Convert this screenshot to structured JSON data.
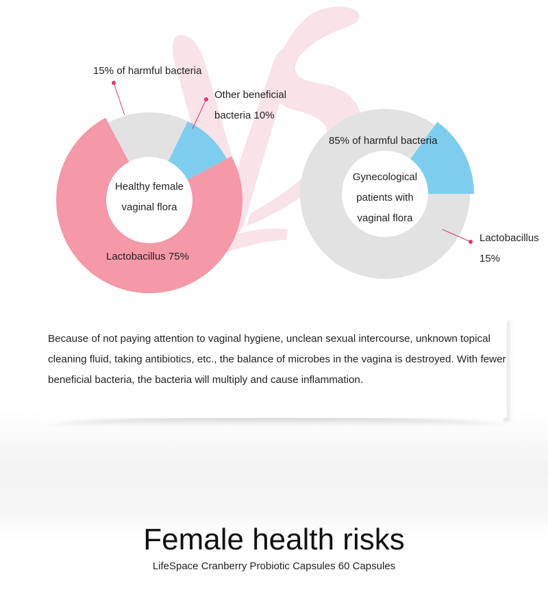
{
  "chart_data": [
    {
      "type": "pie",
      "title": "",
      "center_label": [
        "Healthy female",
        "vaginal flora"
      ],
      "slices": [
        {
          "label": "Lactobacillus 75%",
          "value": 75,
          "color": "#f598a7"
        },
        {
          "label": "15% of harmful bacteria",
          "value": 15,
          "color": "#e2e2e2"
        },
        {
          "label": "Other beneficial bacteria 10%",
          "value": 10,
          "color": "#7ecdee"
        }
      ],
      "callouts": {
        "harmful": "15% of harmful bacteria",
        "beneficial": [
          "Other beneficial",
          "bacteria 10%"
        ],
        "lactobacillus": "Lactobacillus 75%"
      }
    },
    {
      "type": "pie",
      "title": "",
      "center_label": [
        "Gynecological",
        "patients with",
        "vaginal flora"
      ],
      "slices": [
        {
          "label": "85% of harmful bacteria",
          "value": 85,
          "color": "#e2e2e2"
        },
        {
          "label": "Lactobacillus 15%",
          "value": 15,
          "color": "#7ecdee"
        }
      ],
      "callouts": {
        "harmful": "85% of harmful bacteria",
        "lactobacillus": [
          "Lactobacillus",
          "15%"
        ]
      }
    }
  ],
  "accent_color": "#e2356a",
  "description": "Because of not paying attention to vaginal hygiene, unclean sexual intercourse, unknown topical cleaning fluid, taking antibiotics, etc., the balance of microbes in the vagina is destroyed. With fewer beneficial bacteria, the bacteria will multiply and cause inflammation.",
  "heading": "Female health risks",
  "product_line": "LifeSpace Cranberry Probiotic Capsules 60 Capsules"
}
